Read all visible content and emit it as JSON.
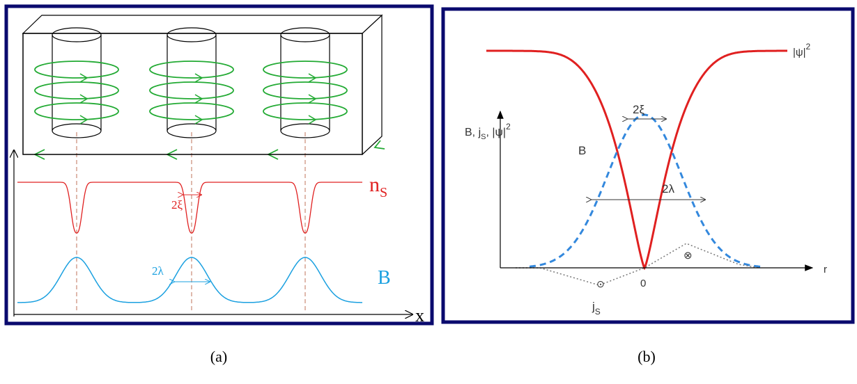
{
  "panel_a": {
    "density_label": {
      "base": "n",
      "sub": "S"
    },
    "coherence_label": "2ξ",
    "penetration_label": "2λ",
    "field_label": "B",
    "x_axis_label": "x"
  },
  "panel_b": {
    "psi_label": {
      "base": "|ψ|",
      "sup": "2"
    },
    "y_axis_label": {
      "part1": "B, j",
      "sub": "S",
      "part2": ", |ψ|",
      "sup": "2"
    },
    "coherence_label": "2ξ",
    "field_label": "B",
    "penetration_label": "2λ",
    "r_axis_label": "r",
    "origin_label": "0",
    "current_label": {
      "base": "j",
      "sub": "S"
    },
    "out_symbol": "⊙",
    "in_symbol": "⊗"
  },
  "captions": {
    "a": "(a)",
    "b": "(b)"
  }
}
